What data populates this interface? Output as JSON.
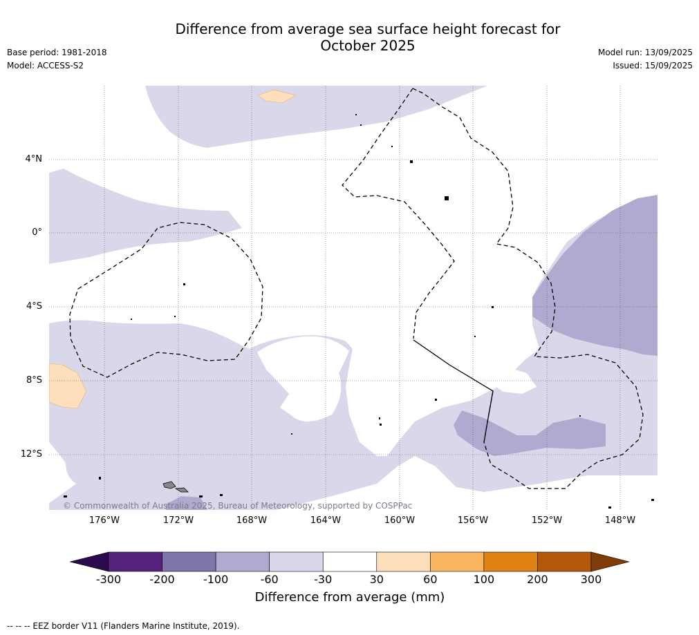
{
  "title_line1": "Difference from average sea surface height forecast for",
  "title_line2": "October 2025",
  "base_period": "Base period: 1981-2018",
  "model": "Model: ACCESS-S2",
  "model_run": "Model run: 13/09/2025",
  "issued": "Issued: 15/09/2025",
  "copyright": "© Commonwealth of Australia 2025, Bureau of Meteorology, supported by COSPPac",
  "footer": "--  --  -- EEZ border V11 (Flanders Marine Institute, 2019).",
  "lat_labels": [
    "4°N",
    "0°",
    "4°S",
    "8°S",
    "12°S"
  ],
  "lon_labels": [
    "176°W",
    "172°W",
    "168°W",
    "164°W",
    "160°W",
    "156°W",
    "152°W",
    "148°W"
  ],
  "colorbar": {
    "title": "Difference from average (mm)",
    "ticks": [
      "-300",
      "-200",
      "-100",
      "-60",
      "-30",
      "30",
      "60",
      "100",
      "200",
      "300"
    ],
    "colors": [
      "#2b0b4d",
      "#56237f",
      "#8075ab",
      "#b1aad0",
      "#d8d8ea",
      "#ffffff",
      "#fde0bb",
      "#f9b65f",
      "#e08214",
      "#b35808",
      "#7f3b08"
    ]
  }
}
